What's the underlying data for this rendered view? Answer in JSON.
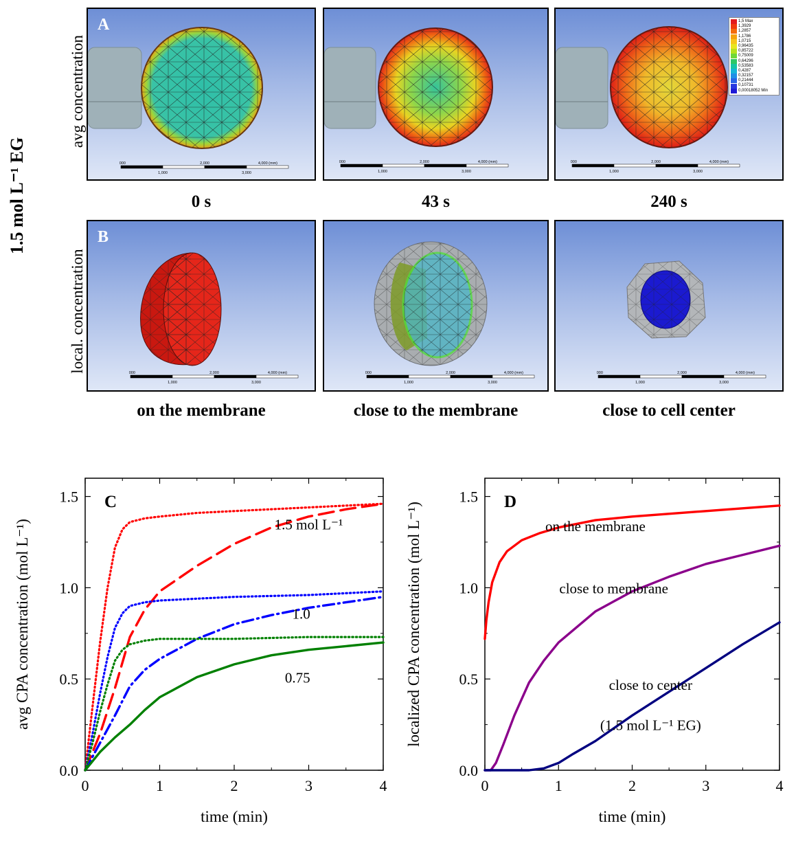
{
  "figure": {
    "side_label": "1.5 mol L⁻¹ EG",
    "row_a": {
      "panel_label": "A",
      "row_label": "avg concentration",
      "captions": [
        "0 s",
        "43 s",
        "240 s"
      ]
    },
    "row_b": {
      "panel_label": "B",
      "row_label": "local. concentration",
      "captions": [
        "on the membrane",
        "close to the membrane",
        "close to cell center"
      ]
    },
    "scale": {
      "ticks_top": [
        "0,000",
        "2,000",
        "4,000 (mm)"
      ],
      "ticks_bottom": [
        "1,000",
        "3,000"
      ]
    },
    "colorbar": {
      "entries": [
        "1,5 Max",
        "1,3929",
        "1,2857",
        "1,1786",
        "1,0715",
        "0,96435",
        "0,85722",
        "0,75009",
        "0,64296",
        "0,53583",
        "0,4287",
        "0,32157",
        "0,21444",
        "0,10731",
        "0,00018052 Min"
      ],
      "colors": [
        "#e31a1c",
        "#f03b0c",
        "#f46a0a",
        "#f6a10c",
        "#f7c51a",
        "#e8e51e",
        "#b5e21d",
        "#6fd838",
        "#2ec765",
        "#17c4a4",
        "#15b4d8",
        "#1f8fe6",
        "#2763e8",
        "#2637e0",
        "#1d1ad6"
      ]
    }
  },
  "chart_data": [
    {
      "type": "line",
      "panel_label": "C",
      "xlabel": "time (min)",
      "ylabel": "avg CPA concentration (mol L⁻¹)",
      "xlim": [
        0,
        4
      ],
      "ylim": [
        0,
        1.6
      ],
      "xticks": [
        "0",
        "1",
        "2",
        "3",
        "4"
      ],
      "yticks": [
        "0.0",
        "0.5",
        "1.0",
        "1.5"
      ],
      "annotations": [
        {
          "text": "1.5 mol L⁻¹",
          "x": 3.0,
          "y": 1.32
        },
        {
          "text": "1.0",
          "x": 2.9,
          "y": 0.83
        },
        {
          "text": "0.75",
          "x": 2.85,
          "y": 0.48
        }
      ],
      "series": [
        {
          "color": "#ff0000",
          "style": "dotted",
          "x": [
            0,
            0.1,
            0.2,
            0.3,
            0.4,
            0.5,
            0.6,
            0.8,
            1.0,
            1.5,
            2,
            3,
            4
          ],
          "y": [
            0,
            0.35,
            0.7,
            1.0,
            1.22,
            1.32,
            1.36,
            1.38,
            1.39,
            1.41,
            1.42,
            1.44,
            1.46
          ]
        },
        {
          "color": "#ff0000",
          "style": "dashed",
          "x": [
            0,
            0.2,
            0.4,
            0.6,
            0.8,
            1.0,
            1.5,
            2,
            2.5,
            3,
            3.5,
            4
          ],
          "y": [
            0,
            0.2,
            0.45,
            0.73,
            0.88,
            0.98,
            1.12,
            1.24,
            1.33,
            1.39,
            1.43,
            1.46
          ]
        },
        {
          "color": "#0000ff",
          "style": "dotted",
          "x": [
            0,
            0.1,
            0.2,
            0.3,
            0.4,
            0.5,
            0.6,
            0.8,
            1.0,
            1.5,
            2,
            3,
            4
          ],
          "y": [
            0,
            0.2,
            0.42,
            0.62,
            0.78,
            0.86,
            0.9,
            0.92,
            0.93,
            0.94,
            0.95,
            0.96,
            0.98
          ]
        },
        {
          "color": "#0000ff",
          "style": "dashdot",
          "x": [
            0,
            0.2,
            0.4,
            0.6,
            0.8,
            1.0,
            1.5,
            2,
            2.5,
            3,
            3.5,
            4
          ],
          "y": [
            0,
            0.15,
            0.3,
            0.46,
            0.55,
            0.61,
            0.72,
            0.8,
            0.85,
            0.89,
            0.92,
            0.95
          ]
        },
        {
          "color": "#008000",
          "style": "dotted",
          "x": [
            0,
            0.1,
            0.2,
            0.3,
            0.4,
            0.5,
            0.6,
            0.8,
            1.0,
            1.5,
            2,
            3,
            4
          ],
          "y": [
            0,
            0.15,
            0.32,
            0.47,
            0.6,
            0.66,
            0.69,
            0.71,
            0.72,
            0.72,
            0.72,
            0.73,
            0.73
          ]
        },
        {
          "color": "#008000",
          "style": "solid",
          "x": [
            0,
            0.2,
            0.4,
            0.6,
            0.8,
            1.0,
            1.5,
            2,
            2.5,
            3,
            3.5,
            4
          ],
          "y": [
            0,
            0.1,
            0.18,
            0.25,
            0.33,
            0.4,
            0.51,
            0.58,
            0.63,
            0.66,
            0.68,
            0.7
          ]
        }
      ]
    },
    {
      "type": "line",
      "panel_label": "D",
      "xlabel": "time (min)",
      "ylabel": "localized CPA concentration (mol L⁻¹)",
      "xlim": [
        0,
        4
      ],
      "ylim": [
        0,
        1.6
      ],
      "xticks": [
        "0",
        "1",
        "2",
        "3",
        "4"
      ],
      "yticks": [
        "0.0",
        "0.5",
        "1.0",
        "1.5"
      ],
      "annotations": [
        {
          "text": "on the membrane",
          "x": 1.5,
          "y": 1.31
        },
        {
          "text": "close to membrane",
          "x": 1.75,
          "y": 0.97
        },
        {
          "text": "close to center",
          "x": 2.25,
          "y": 0.44
        },
        {
          "text": "(1.5 mol L⁻¹ EG)",
          "x": 2.25,
          "y": 0.22
        }
      ],
      "series": [
        {
          "name": "on the membrane",
          "color": "#ff0000",
          "style": "solid",
          "x": [
            0,
            0.02,
            0.05,
            0.1,
            0.2,
            0.3,
            0.5,
            0.75,
            1.0,
            1.5,
            2,
            3,
            4
          ],
          "y": [
            0.72,
            0.82,
            0.92,
            1.03,
            1.14,
            1.2,
            1.26,
            1.3,
            1.33,
            1.37,
            1.39,
            1.42,
            1.45
          ]
        },
        {
          "name": "close to membrane",
          "color": "#8b008b",
          "style": "solid",
          "x": [
            0,
            0.08,
            0.15,
            0.25,
            0.4,
            0.6,
            0.8,
            1.0,
            1.5,
            2,
            2.5,
            3,
            3.5,
            4
          ],
          "y": [
            0,
            0,
            0.04,
            0.14,
            0.3,
            0.48,
            0.6,
            0.7,
            0.87,
            0.98,
            1.06,
            1.13,
            1.18,
            1.23
          ]
        },
        {
          "name": "close to center",
          "color": "#000080",
          "style": "solid",
          "x": [
            0,
            0.3,
            0.6,
            0.8,
            1.0,
            1.2,
            1.5,
            2,
            2.5,
            3,
            3.5,
            4
          ],
          "y": [
            0,
            0,
            0,
            0.01,
            0.04,
            0.09,
            0.16,
            0.3,
            0.43,
            0.56,
            0.69,
            0.81
          ]
        }
      ]
    }
  ]
}
